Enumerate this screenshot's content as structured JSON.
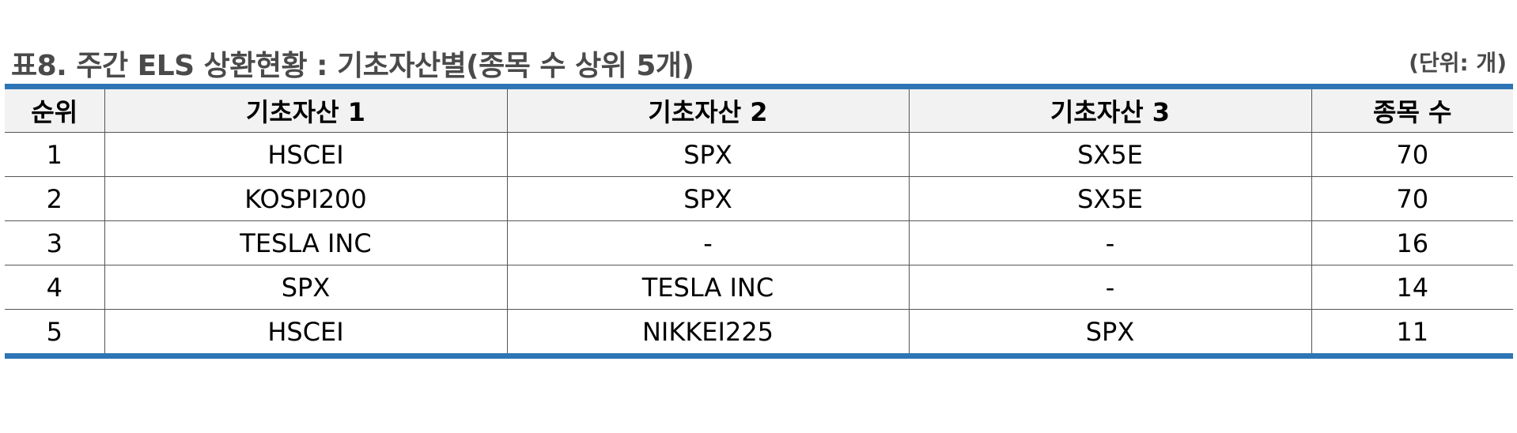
{
  "title": "표8. 주간 ELS 상환현황 : 기초자산별(종목 수 상위 5개)",
  "unit": "(단위: 개)",
  "table": {
    "headers": [
      "순위",
      "기초자산 1",
      "기초자산 2",
      "기초자산 3",
      "종목 수"
    ],
    "rows": [
      [
        "1",
        "HSCEI",
        "SPX",
        "SX5E",
        "70"
      ],
      [
        "2",
        "KOSPI200",
        "SPX",
        "SX5E",
        "70"
      ],
      [
        "3",
        "TESLA INC",
        "-",
        "-",
        "16"
      ],
      [
        "4",
        "SPX",
        "TESLA INC",
        "-",
        "14"
      ],
      [
        "5",
        "HSCEI",
        "NIKKEI225",
        "SPX",
        "11"
      ]
    ]
  },
  "colors": {
    "accent": "#2e75b6",
    "header_bg": "#f2f2f2",
    "title_text": "#4a4a4a"
  }
}
